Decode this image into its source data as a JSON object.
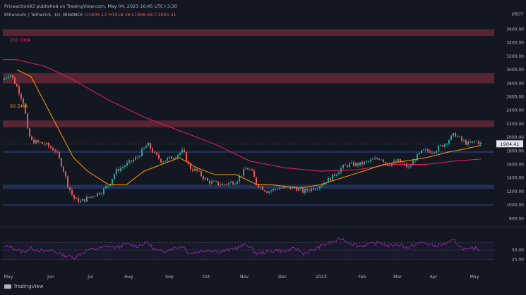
{
  "header": {
    "publisher": "Priceaction93",
    "published_text": "published on TradingView.com, May 04, 2023 16:45 UTC+3:30",
    "symbol": "Ethereum / TetherUS, 1D, BINANCE",
    "open": "O1905.12",
    "high": "H1918.26",
    "low": "L1896.68",
    "close": "C1904.41",
    "unit": "USDT"
  },
  "footer": {
    "brand": "TradingView"
  },
  "colors": {
    "background": "#131722",
    "up": "#26a69a",
    "down": "#ef5350",
    "dma200": "#e91e63",
    "dma50": "#ff9800",
    "rsi": "#9c27b0",
    "zone_red": "#6e2a3a",
    "zone_blue": "#283a66"
  },
  "chart_data": {
    "type": "candlestick",
    "y_axis_ticks": [
      "3600.00",
      "3400.00",
      "3200.00",
      "3000.00",
      "2800.00",
      "2600.00",
      "2400.00",
      "2200.00",
      "2000.00",
      "1800.00",
      "1600.00",
      "1400.00",
      "1200.00",
      "1000.00",
      "800.00"
    ],
    "y_ticks_values": [
      3600,
      3400,
      3200,
      3000,
      2800,
      2600,
      2400,
      2200,
      2000,
      1800,
      1600,
      1400,
      1200,
      1000,
      800
    ],
    "last_price_label": "1904.41",
    "last_price": 1904.41,
    "ylim": [
      720,
      3720
    ],
    "x_labels": [
      "May",
      "Jun",
      "Jul",
      "Aug",
      "Sep",
      "Oct",
      "Nov",
      "Dec",
      "2023",
      "Feb",
      "Mar",
      "Apr",
      "May"
    ],
    "annotations": [
      {
        "text": "200 DMA",
        "color": "#e91e63"
      },
      {
        "text": "50 DMA",
        "color": "#ff9800"
      }
    ],
    "zones": [
      {
        "kind": "resistance",
        "low": 3500,
        "high": 3600
      },
      {
        "kind": "resistance",
        "low": 2800,
        "high": 2950
      },
      {
        "kind": "resistance",
        "low": 2150,
        "high": 2250
      },
      {
        "kind": "support",
        "low": 1770,
        "high": 1800
      },
      {
        "kind": "support",
        "low": 1240,
        "high": 1300
      },
      {
        "kind": "support",
        "low": 990,
        "high": 1010
      }
    ],
    "price_series": [
      [
        0,
        2850
      ],
      [
        10,
        2950
      ],
      [
        20,
        2750
      ],
      [
        30,
        2500
      ],
      [
        35,
        2100
      ],
      [
        40,
        1950
      ],
      [
        60,
        1900
      ],
      [
        75,
        1800
      ],
      [
        85,
        1550
      ],
      [
        92,
        1300
      ],
      [
        100,
        1100
      ],
      [
        110,
        1050
      ],
      [
        120,
        1100
      ],
      [
        130,
        1150
      ],
      [
        140,
        1200
      ],
      [
        150,
        1300
      ],
      [
        160,
        1500
      ],
      [
        175,
        1600
      ],
      [
        190,
        1700
      ],
      [
        205,
        1900
      ],
      [
        215,
        1750
      ],
      [
        225,
        1650
      ],
      [
        240,
        1700
      ],
      [
        255,
        1800
      ],
      [
        265,
        1550
      ],
      [
        275,
        1500
      ],
      [
        290,
        1350
      ],
      [
        310,
        1300
      ],
      [
        330,
        1350
      ],
      [
        345,
        1550
      ],
      [
        352,
        1500
      ],
      [
        360,
        1300
      ],
      [
        375,
        1200
      ],
      [
        390,
        1250
      ],
      [
        400,
        1250
      ],
      [
        415,
        1250
      ],
      [
        425,
        1200
      ],
      [
        440,
        1250
      ],
      [
        450,
        1300
      ],
      [
        465,
        1400
      ],
      [
        480,
        1550
      ],
      [
        490,
        1600
      ],
      [
        505,
        1600
      ],
      [
        520,
        1650
      ],
      [
        535,
        1700
      ],
      [
        545,
        1600
      ],
      [
        560,
        1650
      ],
      [
        575,
        1550
      ],
      [
        585,
        1700
      ],
      [
        595,
        1800
      ],
      [
        610,
        1800
      ],
      [
        625,
        1900
      ],
      [
        640,
        2050
      ],
      [
        650,
        1950
      ],
      [
        660,
        1900
      ],
      [
        670,
        1950
      ],
      [
        677,
        1905
      ]
    ],
    "dma200_series": [
      [
        0,
        3150
      ],
      [
        20,
        3150
      ],
      [
        60,
        3050
      ],
      [
        100,
        2850
      ],
      [
        150,
        2550
      ],
      [
        200,
        2300
      ],
      [
        250,
        2100
      ],
      [
        300,
        1900
      ],
      [
        350,
        1650
      ],
      [
        400,
        1550
      ],
      [
        450,
        1500
      ],
      [
        500,
        1520
      ],
      [
        550,
        1600
      ],
      [
        600,
        1600
      ],
      [
        640,
        1650
      ],
      [
        677,
        1680
      ]
    ],
    "dma50_series": [
      [
        20,
        3000
      ],
      [
        40,
        2900
      ],
      [
        60,
        2500
      ],
      [
        80,
        2100
      ],
      [
        100,
        1700
      ],
      [
        120,
        1500
      ],
      [
        150,
        1300
      ],
      [
        175,
        1300
      ],
      [
        200,
        1500
      ],
      [
        225,
        1600
      ],
      [
        250,
        1700
      ],
      [
        275,
        1550
      ],
      [
        300,
        1450
      ],
      [
        330,
        1450
      ],
      [
        360,
        1300
      ],
      [
        380,
        1300
      ],
      [
        420,
        1250
      ],
      [
        450,
        1300
      ],
      [
        480,
        1400
      ],
      [
        510,
        1500
      ],
      [
        540,
        1600
      ],
      [
        570,
        1650
      ],
      [
        600,
        1700
      ],
      [
        630,
        1780
      ],
      [
        650,
        1820
      ],
      [
        677,
        1880
      ]
    ],
    "rsi_levels": [
      {
        "label": "70",
        "value": 70
      },
      {
        "label": "50.00",
        "value": 50
      },
      {
        "label": "25.00",
        "value": 25
      }
    ],
    "rsi_series": [
      [
        0,
        55
      ],
      [
        10,
        60
      ],
      [
        20,
        50
      ],
      [
        30,
        45
      ],
      [
        40,
        55
      ],
      [
        50,
        50
      ],
      [
        60,
        45
      ],
      [
        70,
        50
      ],
      [
        80,
        40
      ],
      [
        90,
        35
      ],
      [
        100,
        30
      ],
      [
        110,
        40
      ],
      [
        120,
        50
      ],
      [
        140,
        55
      ],
      [
        150,
        60
      ],
      [
        160,
        55
      ],
      [
        175,
        65
      ],
      [
        190,
        60
      ],
      [
        205,
        70
      ],
      [
        215,
        50
      ],
      [
        225,
        45
      ],
      [
        240,
        55
      ],
      [
        255,
        60
      ],
      [
        265,
        40
      ],
      [
        275,
        45
      ],
      [
        290,
        50
      ],
      [
        310,
        45
      ],
      [
        330,
        55
      ],
      [
        345,
        65
      ],
      [
        352,
        55
      ],
      [
        360,
        40
      ],
      [
        375,
        45
      ],
      [
        390,
        50
      ],
      [
        400,
        45
      ],
      [
        415,
        55
      ],
      [
        425,
        40
      ],
      [
        440,
        50
      ],
      [
        450,
        60
      ],
      [
        465,
        70
      ],
      [
        480,
        80
      ],
      [
        490,
        70
      ],
      [
        505,
        60
      ],
      [
        520,
        65
      ],
      [
        535,
        70
      ],
      [
        545,
        60
      ],
      [
        560,
        65
      ],
      [
        575,
        55
      ],
      [
        585,
        65
      ],
      [
        595,
        70
      ],
      [
        610,
        60
      ],
      [
        625,
        65
      ],
      [
        640,
        75
      ],
      [
        650,
        55
      ],
      [
        660,
        50
      ],
      [
        670,
        55
      ],
      [
        677,
        52
      ]
    ]
  }
}
